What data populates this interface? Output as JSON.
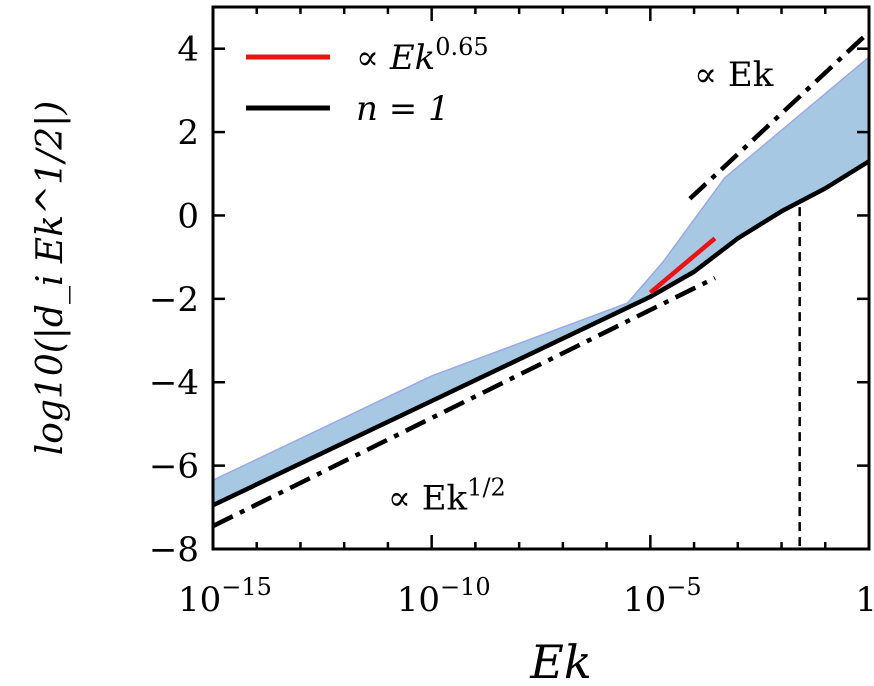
{
  "chart_data": {
    "type": "line",
    "title": "",
    "xlabel": "Ek",
    "ylabel": "log10(|d_i Ek^1/2|)",
    "x_scale": "log",
    "xlim": [
      1e-15,
      1
    ],
    "ylim": [
      -8,
      5
    ],
    "x_ticks": [
      {
        "value": 1e-15,
        "base": "10",
        "exp": "−15"
      },
      {
        "value": 1e-10,
        "base": "10",
        "exp": "−10"
      },
      {
        "value": 1e-05,
        "base": "10",
        "exp": "−5"
      },
      {
        "value": 1,
        "base": "1",
        "exp": ""
      }
    ],
    "y_ticks": [
      {
        "value": 4,
        "label": "4"
      },
      {
        "value": 2,
        "label": "2"
      },
      {
        "value": 0,
        "label": "0"
      },
      {
        "value": -2,
        "label": "−2"
      },
      {
        "value": -4,
        "label": "−4"
      },
      {
        "value": -6,
        "label": "−6"
      },
      {
        "value": -8,
        "label": "−8"
      }
    ],
    "band": {
      "color": "#a6c8e2",
      "edge_color": "#9aa8ec",
      "upper": [
        {
          "x": 1e-15,
          "y": -6.35
        },
        {
          "x": 1e-10,
          "y": -3.85
        },
        {
          "x": 3e-06,
          "y": -2.1
        },
        {
          "x": 2e-05,
          "y": -1.1
        },
        {
          "x": 0.0005,
          "y": 0.9
        },
        {
          "x": 1,
          "y": 3.8
        }
      ],
      "lower": [
        {
          "x": 1e-15,
          "y": -6.95
        },
        {
          "x": 1e-10,
          "y": -4.45
        },
        {
          "x": 1e-05,
          "y": -1.95
        },
        {
          "x": 0.0001,
          "y": -1.35
        },
        {
          "x": 0.001,
          "y": -0.55
        },
        {
          "x": 0.01,
          "y": 0.1
        },
        {
          "x": 0.1,
          "y": 0.65
        },
        {
          "x": 1,
          "y": 1.3
        }
      ]
    },
    "series": [
      {
        "name": "n = 1",
        "legend_label": "n = 1",
        "color": "#000000",
        "style": "solid",
        "points": [
          {
            "x": 1e-15,
            "y": -6.95
          },
          {
            "x": 1e-10,
            "y": -4.45
          },
          {
            "x": 1e-05,
            "y": -1.95
          },
          {
            "x": 0.0001,
            "y": -1.35
          },
          {
            "x": 0.001,
            "y": -0.55
          },
          {
            "x": 0.01,
            "y": 0.1
          },
          {
            "x": 0.1,
            "y": 0.65
          },
          {
            "x": 1,
            "y": 1.3
          }
        ]
      },
      {
        "name": "∝ Ek^0.65",
        "legend_label": "∝ Ek",
        "legend_sup": "0.65",
        "color": "#ee1111",
        "style": "solid",
        "points": [
          {
            "x": 1e-05,
            "y": -1.85
          },
          {
            "x": 0.0003,
            "y": -0.55
          }
        ]
      }
    ],
    "reference_lines": [
      {
        "name": "∝ Ek^1/2",
        "style": "dashdot",
        "color": "#000000",
        "points": [
          {
            "x": 1e-15,
            "y": -7.45
          },
          {
            "x": 0.0003,
            "y": -1.5
          }
        ]
      },
      {
        "name": "∝ Ek",
        "style": "dashdot",
        "color": "#000000",
        "points": [
          {
            "x": 8e-05,
            "y": 0.4
          },
          {
            "x": 1,
            "y": 4.4
          }
        ]
      }
    ],
    "vline": {
      "x": 0.026,
      "style": "dashed",
      "color": "#000000"
    },
    "annotations": [
      {
        "text": "∝ Ek",
        "sup": "",
        "x": 0.0001,
        "y": 3.1
      },
      {
        "text": "∝ Ek",
        "sup": "1/2",
        "x": 1e-11,
        "y": -7.05
      }
    ],
    "legend": {
      "placement": "top-left"
    }
  }
}
